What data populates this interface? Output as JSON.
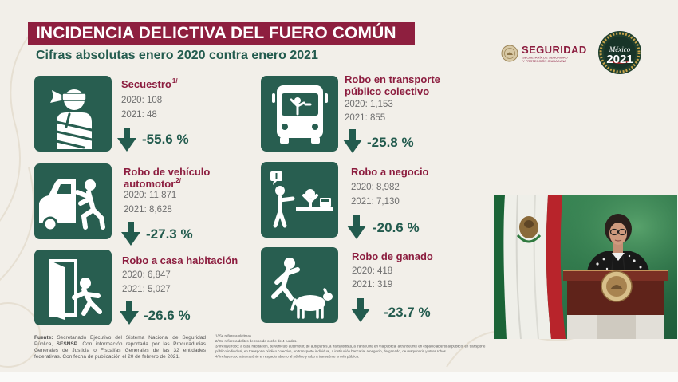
{
  "slide": {
    "title": "INCIDENCIA DELICTIVA DEL FUERO COMÚN",
    "subtitle": "Cifras absolutas enero 2020 contra enero 2021",
    "items": [
      {
        "title_lines": [
          "Secuestro"
        ],
        "note": "1/",
        "line_2020": "2020: 108",
        "line_2021": "2021: 48",
        "change": "-55.6 %",
        "icon": "kidnapping-icon"
      },
      {
        "title_lines": [
          "Robo de vehículo",
          "automotor"
        ],
        "note": "2/",
        "line_2020": "2020: 11,871",
        "line_2021": "2021: 8,628",
        "change": "-27.3 %",
        "icon": "car-theft-icon"
      },
      {
        "title_lines": [
          "Robo a casa habitación"
        ],
        "line_2020": "2020: 6,847",
        "line_2021": "2021: 5,027",
        "change": "-26.6 %",
        "icon": "house-robbery-icon"
      },
      {
        "title_lines": [
          "Robo en transporte",
          "público colectivo"
        ],
        "line_2020": "2020: 1,153",
        "line_2021": "2021: 855",
        "change": "-25.8 %",
        "icon": "bus-robbery-icon"
      },
      {
        "title_lines": [
          "Robo a negocio"
        ],
        "line_2020": "2020: 8,982",
        "line_2021": "2021: 7,130",
        "change": "-20.6 %",
        "icon": "business-robbery-icon"
      },
      {
        "title_lines": [
          "Robo de ganado"
        ],
        "line_2020": "2020: 418",
        "line_2021": "2021: 319",
        "change": "-23.7 %",
        "icon": "livestock-robbery-icon"
      }
    ],
    "source": {
      "label": "Fuente:",
      "text_a": " Secretariado Ejecutivo del Sistema Nacional de Seguridad Pública, ",
      "abbr": "SESNSP",
      "text_b": ". Con información reportada por las Procuradurías Generales de Justicia o Fiscalías Generales de las 32 entidades federativas. Con fecha de publicación el 20 de febrero de 2021."
    },
    "footnotes": [
      "1/ Se refiere a víctimas.",
      "2/ Se refiere a delitos de robo de coche de 4 ruedas.",
      "3/ Incluye robo: a casa habitación, de vehículo automotor, de autopartes, a transportista, a transeúnte en vía pública, a transeúnte en espacio abierto al público, en transporte público individual, en transporte público colectivo, en transporte individual, a institución bancaria, a negocio, de ganado, de maquinaria y otros robos.",
      "4/ Incluye robo a transeúnte en espacio abierto al público y robo a transeúnte en vía pública."
    ]
  },
  "logos": {
    "sspc": {
      "name": "SEGURIDAD",
      "sub_lines": [
        "SECRETARÍA DE SEGURIDAD",
        "Y PROTECCIÓN CIUDADANA"
      ],
      "icon": "national-seal-icon"
    },
    "mexico": {
      "script": "México",
      "year": "2021"
    }
  },
  "colors": {
    "maroon": "#8c1d3f",
    "green": "#235b4e",
    "icon_box": "#285e50",
    "value_gray": "#6e6e6e",
    "gold": "#c9a96a"
  }
}
